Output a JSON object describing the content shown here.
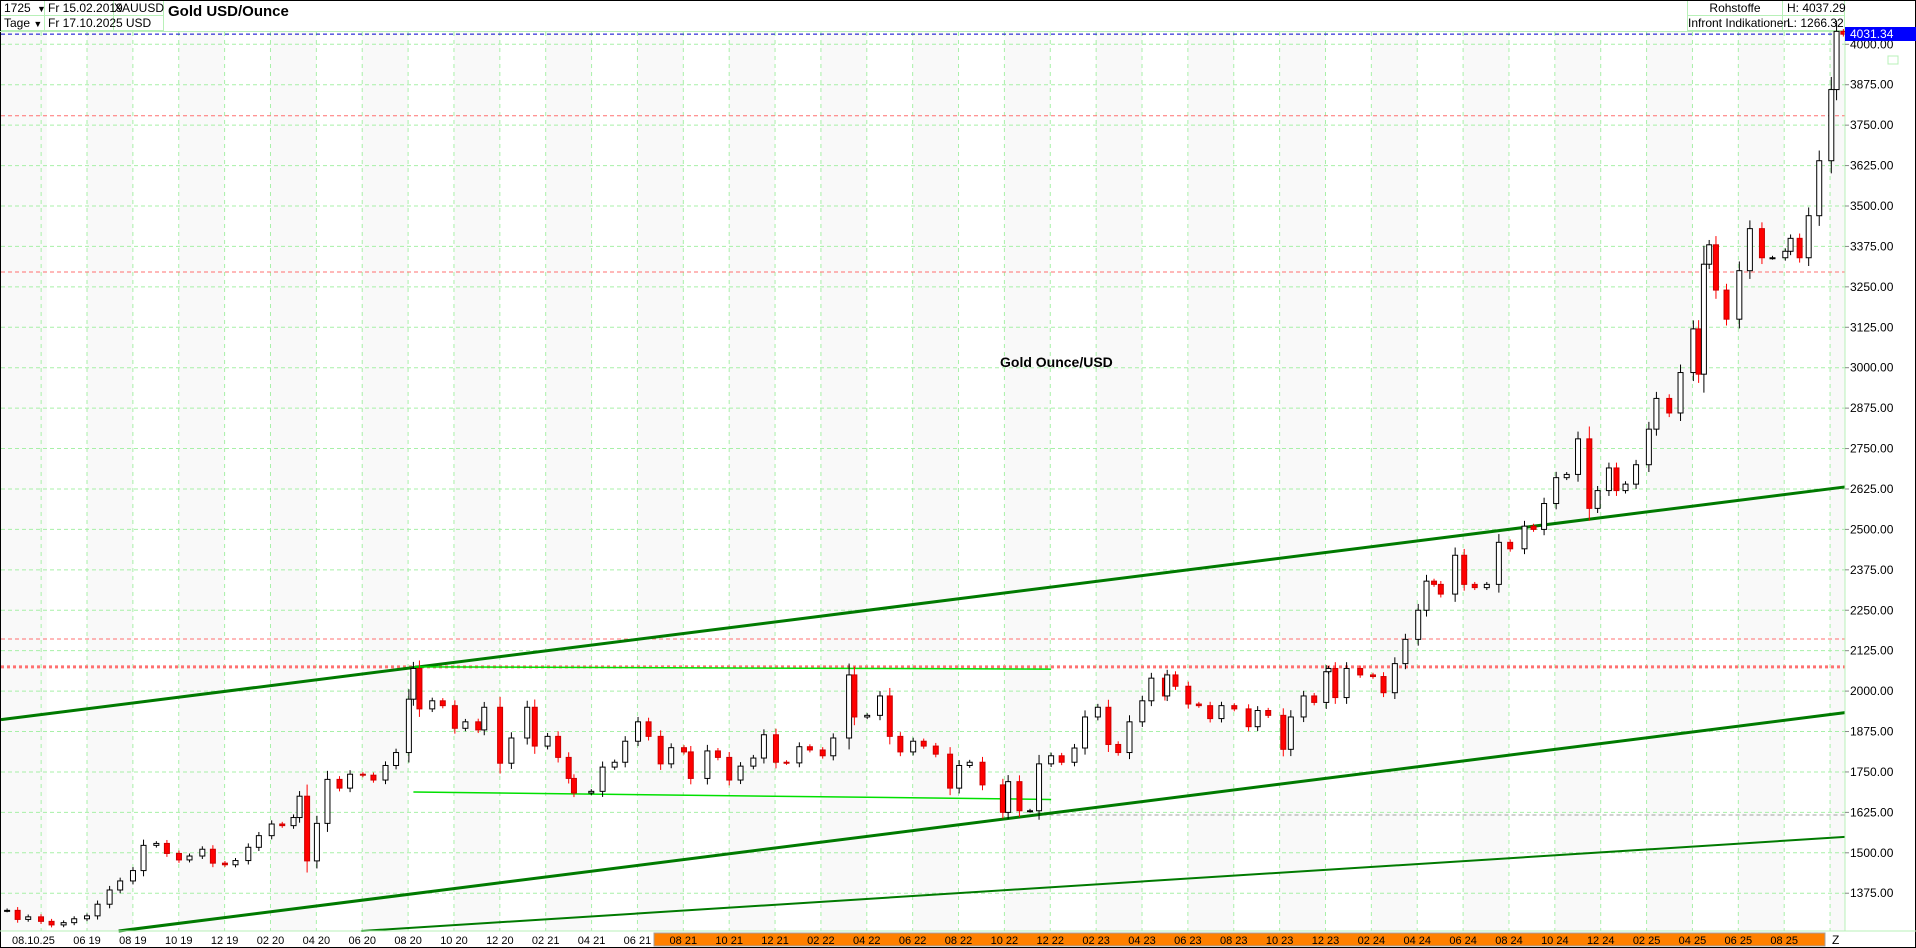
{
  "header": {
    "bars_count": "1725",
    "period": "Tage",
    "date_from": "Fr 15.02.2019",
    "date_to": "Fr 17.10.2025",
    "symbol": "XAUUSD",
    "currency": "USD",
    "title": "Gold USD/Ounce",
    "category": "Rohstoffe",
    "source": "Infront Indikationen",
    "high": "H: 4037.29",
    "low": "L: 1266.32"
  },
  "annotation": "Gold Ounce/USD",
  "current_price": "4031.34",
  "colors": {
    "grid": "#a8f0a8",
    "trendline": "#007a00",
    "support_line": "#00e000",
    "resistance_dotted": "#ff7070",
    "current_line": "#0000cc",
    "current_box": "#0000ff",
    "down_candle": "#ff0000",
    "up_candle": "#000000",
    "axis_highlight": "#ff8000"
  },
  "x_axis": {
    "cursor_label": "08.10.25",
    "end_label": "Z",
    "ticks": [
      "06 19",
      "08 19",
      "10 19",
      "12 19",
      "02 20",
      "04 20",
      "06 20",
      "08 20",
      "10 20",
      "12 20",
      "02 21",
      "04 21",
      "06 21",
      "08 21",
      "10 21",
      "12 21",
      "02 22",
      "04 22",
      "06 22",
      "08 22",
      "10 22",
      "12 22",
      "02 23",
      "04 23",
      "06 23",
      "08 23",
      "10 23",
      "12 23",
      "02 24",
      "04 24",
      "06 24",
      "08 24",
      "10 24",
      "12 24",
      "02 25",
      "04 25",
      "06 25",
      "08 25"
    ]
  },
  "chart_data": {
    "type": "candlestick",
    "title": "Gold USD/Ounce",
    "ylim": [
      1266.32,
      4037.29
    ],
    "y_ticks": [
      "1375.00",
      "1500.00",
      "1625.00",
      "1750.00",
      "1875.00",
      "2000.00",
      "2125.00",
      "2250.00",
      "2375.00",
      "2500.00",
      "2625.00",
      "2750.00",
      "2875.00",
      "3000.00",
      "3125.00",
      "3250.00",
      "3375.00",
      "3500.00",
      "3625.00",
      "3750.00",
      "3875.00",
      "4000.00"
    ],
    "grid": true,
    "series": [
      {
        "dates": [
          "2019-02-15",
          "2019-03-01",
          "2019-03-15",
          "2019-04-01",
          "2019-04-15",
          "2019-05-01",
          "2019-05-15",
          "2019-06-01",
          "2019-06-15",
          "2019-07-01",
          "2019-07-15",
          "2019-08-01",
          "2019-08-15",
          "2019-09-01",
          "2019-09-15",
          "2019-10-01",
          "2019-10-15",
          "2019-11-01",
          "2019-11-15",
          "2019-12-01",
          "2019-12-15",
          "2020-01-01",
          "2020-01-15",
          "2020-02-01",
          "2020-02-15",
          "2020-03-01",
          "2020-03-09",
          "2020-03-19",
          "2020-04-01",
          "2020-04-15",
          "2020-05-01",
          "2020-05-15",
          "2020-06-01",
          "2020-06-15",
          "2020-07-01",
          "2020-07-15",
          "2020-08-01",
          "2020-08-07",
          "2020-08-15",
          "2020-09-01",
          "2020-09-15",
          "2020-10-01",
          "2020-10-15",
          "2020-11-01",
          "2020-11-09",
          "2020-11-30",
          "2020-12-15",
          "2021-01-05",
          "2021-01-15",
          "2021-02-01",
          "2021-02-15",
          "2021-03-01",
          "2021-03-08",
          "2021-03-31",
          "2021-04-15",
          "2021-05-01",
          "2021-05-15",
          "2021-06-01",
          "2021-06-15",
          "2021-07-01",
          "2021-07-15",
          "2021-08-01",
          "2021-08-10",
          "2021-09-01",
          "2021-09-15",
          "2021-09-30",
          "2021-10-15",
          "2021-11-01",
          "2021-11-15",
          "2021-12-01",
          "2021-12-15",
          "2022-01-01",
          "2022-01-15",
          "2022-02-01",
          "2022-02-15",
          "2022-03-08",
          "2022-03-15",
          "2022-04-01",
          "2022-04-18",
          "2022-05-01",
          "2022-05-15",
          "2022-06-01",
          "2022-06-15",
          "2022-07-01",
          "2022-07-20",
          "2022-08-01",
          "2022-08-15",
          "2022-09-01",
          "2022-09-28",
          "2022-10-05",
          "2022-10-20",
          "2022-11-03",
          "2022-11-15",
          "2022-12-01",
          "2022-12-15",
          "2023-01-01",
          "2023-01-15",
          "2023-02-01",
          "2023-02-15",
          "2023-02-28",
          "2023-03-15",
          "2023-04-01",
          "2023-04-13",
          "2023-05-01",
          "2023-05-04",
          "2023-05-15",
          "2023-06-01",
          "2023-06-15",
          "2023-06-30",
          "2023-07-15",
          "2023-08-01",
          "2023-08-20",
          "2023-09-01",
          "2023-09-15",
          "2023-10-05",
          "2023-10-15",
          "2023-11-01",
          "2023-11-15",
          "2023-12-01",
          "2023-12-04",
          "2023-12-13",
          "2023-12-28",
          "2024-01-15",
          "2024-02-01",
          "2024-02-15",
          "2024-03-01",
          "2024-03-15",
          "2024-04-01",
          "2024-04-12",
          "2024-04-22",
          "2024-05-01",
          "2024-05-20",
          "2024-06-01",
          "2024-06-15",
          "2024-07-01",
          "2024-07-17",
          "2024-08-01",
          "2024-08-20",
          "2024-09-01",
          "2024-09-15",
          "2024-10-01",
          "2024-10-15",
          "2024-10-30",
          "2024-11-14",
          "2024-11-25",
          "2024-12-10",
          "2024-12-20",
          "2025-01-01",
          "2025-01-15",
          "2025-02-01",
          "2025-02-11",
          "2025-02-28",
          "2025-03-15",
          "2025-04-01",
          "2025-04-08",
          "2025-04-15",
          "2025-04-22",
          "2025-05-01",
          "2025-05-15",
          "2025-06-01",
          "2025-06-15",
          "2025-07-01",
          "2025-07-15",
          "2025-08-01",
          "2025-08-08",
          "2025-08-20",
          "2025-09-01",
          "2025-09-15",
          "2025-10-01",
          "2025-10-08",
          "2025-10-17"
        ],
        "values": [
          1322,
          1294,
          1302,
          1288,
          1277,
          1284,
          1296,
          1305,
          1341,
          1385,
          1413,
          1445,
          1523,
          1529,
          1498,
          1478,
          1490,
          1511,
          1468,
          1463,
          1476,
          1517,
          1553,
          1589,
          1584,
          1609,
          1675,
          1475,
          1591,
          1727,
          1700,
          1743,
          1740,
          1725,
          1770,
          1810,
          1975,
          2070,
          1945,
          1970,
          1955,
          1885,
          1905,
          1880,
          1950,
          1777,
          1855,
          1950,
          1830,
          1860,
          1795,
          1730,
          1685,
          1690,
          1765,
          1780,
          1845,
          1905,
          1860,
          1775,
          1825,
          1812,
          1730,
          1815,
          1795,
          1725,
          1768,
          1793,
          1865,
          1780,
          1778,
          1828,
          1818,
          1800,
          1855,
          2050,
          1920,
          1925,
          1985,
          1860,
          1812,
          1845,
          1830,
          1805,
          1700,
          1770,
          1780,
          1710,
          1625,
          1720,
          1630,
          1630,
          1775,
          1800,
          1780,
          1824,
          1920,
          1950,
          1835,
          1810,
          1905,
          1970,
          2040,
          1985,
          2050,
          2015,
          1960,
          1955,
          1915,
          1955,
          1945,
          1890,
          1940,
          1925,
          1820,
          1920,
          1985,
          1965,
          2060,
          2070,
          1980,
          2070,
          2050,
          2045,
          1995,
          2085,
          2160,
          2250,
          2340,
          2330,
          2300,
          2420,
          2330,
          2320,
          2330,
          2460,
          2440,
          2510,
          2500,
          2580,
          2660,
          2670,
          2780,
          2565,
          2620,
          2690,
          2620,
          2640,
          2700,
          2810,
          2905,
          2860,
          2985,
          3120,
          2980,
          3320,
          3380,
          3240,
          3150,
          3300,
          3430,
          3340,
          3340,
          3360,
          3400,
          3340,
          3470,
          3640,
          3860,
          4040,
          4031.34
        ]
      }
    ],
    "levels": [
      {
        "kind": "dashed-red",
        "value": 3779
      },
      {
        "kind": "dashed-red",
        "value": 3296
      },
      {
        "kind": "dashed-red",
        "value": 2161
      },
      {
        "kind": "dotted-red-bold",
        "value": 2075
      },
      {
        "kind": "dashed-gray",
        "value": 1617,
        "from": "2022-11-01"
      }
    ],
    "trendlines": [
      {
        "kind": "bold",
        "from": [
          "2019-01-25",
          1908
        ],
        "to": [
          "2025-10-25",
          2633
        ]
      },
      {
        "kind": "bold",
        "from": [
          "2019-06-22",
          1252
        ],
        "to": [
          "2025-10-25",
          1935
        ]
      },
      {
        "kind": "normal",
        "from": [
          "2020-04-18",
          1252
        ],
        "to": [
          "2025-10-25",
          1550
        ]
      },
      {
        "kind": "light",
        "from": [
          "2020-08-07",
          2075
        ],
        "to": [
          "2022-12-01",
          2068
        ]
      },
      {
        "kind": "light",
        "from": [
          "2020-08-07",
          1688
        ],
        "to": [
          "2022-12-01",
          1665
        ]
      }
    ]
  }
}
